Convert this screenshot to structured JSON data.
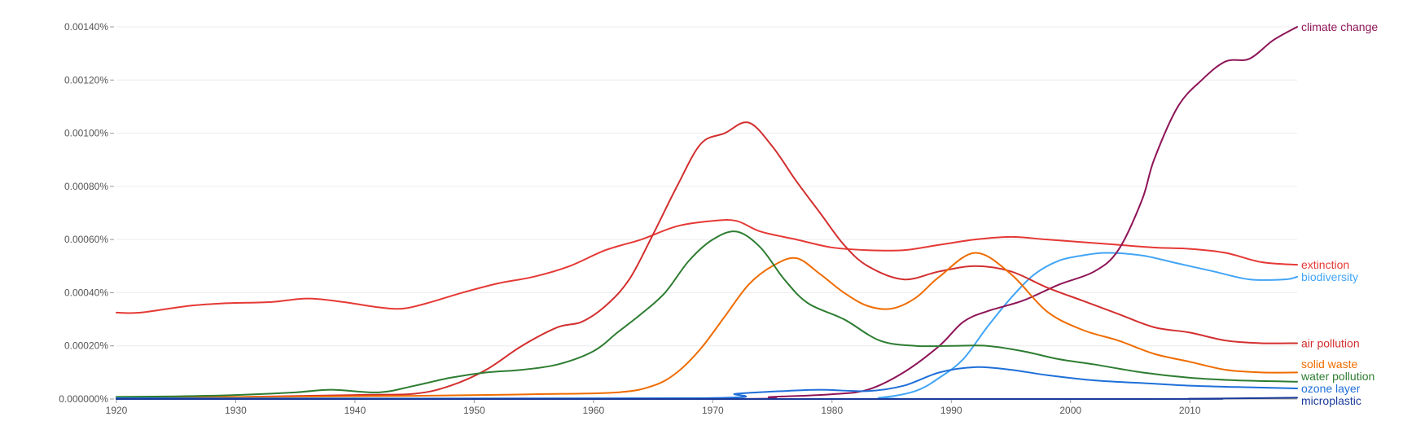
{
  "chart_data": {
    "type": "line",
    "title": "",
    "xlabel": "",
    "ylabel": "",
    "xlim": [
      1920,
      2019
    ],
    "ylim": [
      0,
      0.0014
    ],
    "grid": true,
    "legend": "right-end labels",
    "y_ticks": [
      "0.000000%",
      "0.00020%",
      "0.00040%",
      "0.00060%",
      "0.00080%",
      "0.00100%",
      "0.00120%",
      "0.00140%"
    ],
    "y_tick_values": [
      0,
      0.0002,
      0.0004,
      0.0006,
      0.0008,
      0.001,
      0.0012,
      0.0014
    ],
    "x_ticks": [
      "1920",
      "1930",
      "1940",
      "1950",
      "1960",
      "1970",
      "1980",
      "1990",
      "2000",
      "2010"
    ],
    "x_tick_values": [
      1920,
      1930,
      1940,
      1950,
      1960,
      1970,
      1980,
      1990,
      2000,
      2010
    ],
    "series": [
      {
        "name": "extinction",
        "color": "#e53935",
        "points": [
          [
            1920,
            0.000325
          ],
          [
            1922,
            0.000325
          ],
          [
            1926,
            0.00035
          ],
          [
            1929,
            0.00036
          ],
          [
            1933,
            0.000365
          ],
          [
            1936,
            0.000378
          ],
          [
            1939,
            0.000365
          ],
          [
            1942,
            0.000345
          ],
          [
            1944,
            0.00034
          ],
          [
            1946,
            0.00036
          ],
          [
            1949,
            0.0004
          ],
          [
            1952,
            0.000435
          ],
          [
            1955,
            0.00046
          ],
          [
            1958,
            0.0005
          ],
          [
            1961,
            0.00056
          ],
          [
            1964,
            0.0006
          ],
          [
            1967,
            0.00065
          ],
          [
            1970,
            0.00067
          ],
          [
            1972,
            0.00067
          ],
          [
            1974,
            0.00063
          ],
          [
            1977,
            0.0006
          ],
          [
            1980,
            0.00057
          ],
          [
            1983,
            0.00056
          ],
          [
            1986,
            0.00056
          ],
          [
            1989,
            0.00058
          ],
          [
            1992,
            0.0006
          ],
          [
            1995,
            0.00061
          ],
          [
            1998,
            0.0006
          ],
          [
            2001,
            0.00059
          ],
          [
            2004,
            0.00058
          ],
          [
            2007,
            0.00057
          ],
          [
            2010,
            0.000565
          ],
          [
            2013,
            0.00055
          ],
          [
            2016,
            0.000515
          ],
          [
            2019,
            0.000505
          ]
        ]
      },
      {
        "name": "biodiversity",
        "color": "#42a5f5",
        "points": [
          [
            1920,
            0.0
          ],
          [
            1980,
            0.0
          ],
          [
            1984,
            5e-06
          ],
          [
            1987,
            3e-05
          ],
          [
            1989,
            8e-05
          ],
          [
            1991,
            0.00015
          ],
          [
            1993,
            0.00027
          ],
          [
            1995,
            0.00038
          ],
          [
            1997,
            0.00047
          ],
          [
            1999,
            0.00052
          ],
          [
            2001,
            0.00054
          ],
          [
            2003,
            0.00055
          ],
          [
            2006,
            0.00054
          ],
          [
            2009,
            0.00051
          ],
          [
            2012,
            0.00048
          ],
          [
            2015,
            0.00045
          ],
          [
            2018,
            0.00045
          ],
          [
            2019,
            0.00046
          ]
        ]
      },
      {
        "name": "climate change",
        "color": "#8e1457",
        "points": [
          [
            1920,
            0.0
          ],
          [
            1970,
            0.0
          ],
          [
            1975,
            8e-06
          ],
          [
            1980,
            1.8e-05
          ],
          [
            1983,
            3.5e-05
          ],
          [
            1986,
            0.0001
          ],
          [
            1989,
            0.0002
          ],
          [
            1991,
            0.00029
          ],
          [
            1993,
            0.00033
          ],
          [
            1996,
            0.00037
          ],
          [
            1999,
            0.00043
          ],
          [
            2002,
            0.00048
          ],
          [
            2004,
            0.00056
          ],
          [
            2006,
            0.00075
          ],
          [
            2007,
            0.0009
          ],
          [
            2009,
            0.0011
          ],
          [
            2011,
            0.0012
          ],
          [
            2013,
            0.00127
          ],
          [
            2015,
            0.00128
          ],
          [
            2017,
            0.00135
          ],
          [
            2019,
            0.0014
          ]
        ]
      },
      {
        "name": "air pollution",
        "color": "#d32f2f",
        "points": [
          [
            1920,
            0.0
          ],
          [
            1940,
            1.5e-05
          ],
          [
            1945,
            2e-05
          ],
          [
            1948,
            5e-05
          ],
          [
            1951,
            0.00011
          ],
          [
            1954,
            0.0002
          ],
          [
            1957,
            0.00027
          ],
          [
            1959,
            0.00029
          ],
          [
            1961,
            0.00035
          ],
          [
            1963,
            0.00045
          ],
          [
            1965,
            0.00062
          ],
          [
            1967,
            0.0008
          ],
          [
            1969,
            0.00096
          ],
          [
            1971,
            0.001
          ],
          [
            1973,
            0.00104
          ],
          [
            1975,
            0.00095
          ],
          [
            1977,
            0.00082
          ],
          [
            1979,
            0.0007
          ],
          [
            1981,
            0.00058
          ],
          [
            1983,
            0.0005
          ],
          [
            1986,
            0.00045
          ],
          [
            1989,
            0.00048
          ],
          [
            1992,
            0.0005
          ],
          [
            1995,
            0.00048
          ],
          [
            1998,
            0.00042
          ],
          [
            2001,
            0.00037
          ],
          [
            2004,
            0.00032
          ],
          [
            2007,
            0.00027
          ],
          [
            2010,
            0.00025
          ],
          [
            2013,
            0.00022
          ],
          [
            2016,
            0.00021
          ],
          [
            2019,
            0.00021
          ]
        ]
      },
      {
        "name": "solid waste",
        "color": "#ef6c00",
        "points": [
          [
            1920,
            5e-06
          ],
          [
            1945,
            1.2e-05
          ],
          [
            1955,
            1.8e-05
          ],
          [
            1962,
            2.5e-05
          ],
          [
            1965,
            5e-05
          ],
          [
            1967,
            0.0001
          ],
          [
            1969,
            0.00019
          ],
          [
            1971,
            0.00031
          ],
          [
            1973,
            0.00043
          ],
          [
            1975,
            0.0005
          ],
          [
            1977,
            0.00053
          ],
          [
            1979,
            0.00047
          ],
          [
            1981,
            0.0004
          ],
          [
            1983,
            0.00035
          ],
          [
            1985,
            0.00034
          ],
          [
            1987,
            0.00038
          ],
          [
            1989,
            0.00046
          ],
          [
            1992,
            0.00055
          ],
          [
            1995,
            0.00047
          ],
          [
            1998,
            0.00033
          ],
          [
            2001,
            0.00026
          ],
          [
            2004,
            0.00022
          ],
          [
            2007,
            0.00017
          ],
          [
            2010,
            0.00014
          ],
          [
            2013,
            0.00011
          ],
          [
            2016,
            0.0001
          ],
          [
            2019,
            0.0001
          ]
        ]
      },
      {
        "name": "water pollution",
        "color": "#2e7d32",
        "points": [
          [
            1920,
            8e-06
          ],
          [
            1925,
            1e-05
          ],
          [
            1930,
            1.5e-05
          ],
          [
            1935,
            2.5e-05
          ],
          [
            1938,
            3.5e-05
          ],
          [
            1942,
            2.5e-05
          ],
          [
            1945,
            5e-05
          ],
          [
            1948,
            8e-05
          ],
          [
            1951,
            0.0001
          ],
          [
            1954,
            0.00011
          ],
          [
            1957,
            0.00013
          ],
          [
            1960,
            0.00018
          ],
          [
            1962,
            0.00025
          ],
          [
            1964,
            0.00032
          ],
          [
            1966,
            0.0004
          ],
          [
            1968,
            0.00052
          ],
          [
            1970,
            0.0006
          ],
          [
            1972,
            0.00063
          ],
          [
            1974,
            0.00057
          ],
          [
            1976,
            0.00045
          ],
          [
            1978,
            0.00036
          ],
          [
            1981,
            0.0003
          ],
          [
            1984,
            0.00022
          ],
          [
            1987,
            0.0002
          ],
          [
            1990,
            0.0002
          ],
          [
            1993,
            0.0002
          ],
          [
            1996,
            0.00018
          ],
          [
            1999,
            0.00015
          ],
          [
            2002,
            0.00013
          ],
          [
            2006,
            0.0001
          ],
          [
            2010,
            8e-05
          ],
          [
            2014,
            7e-05
          ],
          [
            2019,
            6.5e-05
          ]
        ]
      },
      {
        "name": "ozone layer",
        "color": "#1e6fd9",
        "points": [
          [
            1920,
            3e-06
          ],
          [
            1968,
            3e-06
          ],
          [
            1972,
            2e-05
          ],
          [
            1976,
            3e-05
          ],
          [
            1979,
            3.5e-05
          ],
          [
            1983,
            3e-05
          ],
          [
            1986,
            5e-05
          ],
          [
            1989,
            0.0001
          ],
          [
            1992,
            0.00012
          ],
          [
            1995,
            0.00011
          ],
          [
            1998,
            9e-05
          ],
          [
            2002,
            7e-05
          ],
          [
            2006,
            6e-05
          ],
          [
            2010,
            5e-05
          ],
          [
            2014,
            4.5e-05
          ],
          [
            2019,
            4e-05
          ]
        ]
      },
      {
        "name": "microplastic",
        "color": "#1a3a9a",
        "points": [
          [
            1920,
            0.0
          ],
          [
            2005,
            0.0
          ],
          [
            2010,
            1e-06
          ],
          [
            2015,
            3e-06
          ],
          [
            2019,
            5e-06
          ]
        ]
      }
    ]
  }
}
